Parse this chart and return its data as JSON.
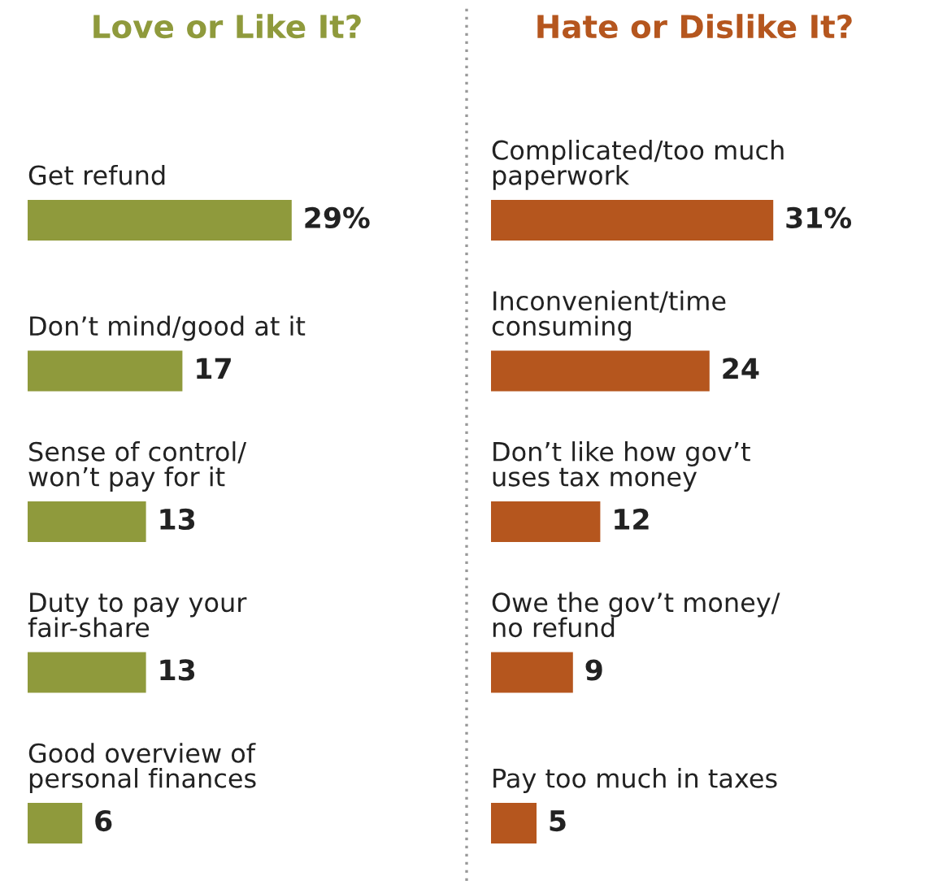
{
  "chart_data": [
    {
      "type": "bar",
      "orientation": "horizontal",
      "title": "Love or Like It?",
      "categories": [
        "Get refund",
        "Don’t mind/good at it",
        "Sense of control/\nwon’t pay for it",
        "Duty to pay your\nfair-share",
        "Good overview of\npersonal finances"
      ],
      "series": [
        {
          "color": "#8f9a3c",
          "values": [
            29,
            17,
            13,
            13,
            6
          ],
          "value_labels": [
            "29%",
            "17",
            "13",
            "13",
            "6"
          ]
        }
      ]
    },
    {
      "type": "bar",
      "orientation": "horizontal",
      "title": "Hate or Dislike It?",
      "categories": [
        "Complicated/too much\npaperwork",
        "Inconvenient/time\nconsuming",
        "Don’t like how gov’t\nuses tax money",
        "Owe the gov’t money/\nno refund",
        "Pay too much in taxes"
      ],
      "series": [
        {
          "color": "#b5561e",
          "values": [
            31,
            24,
            12,
            9,
            5
          ],
          "value_labels": [
            "31%",
            "24",
            "12",
            "9",
            "5"
          ]
        }
      ]
    }
  ]
}
